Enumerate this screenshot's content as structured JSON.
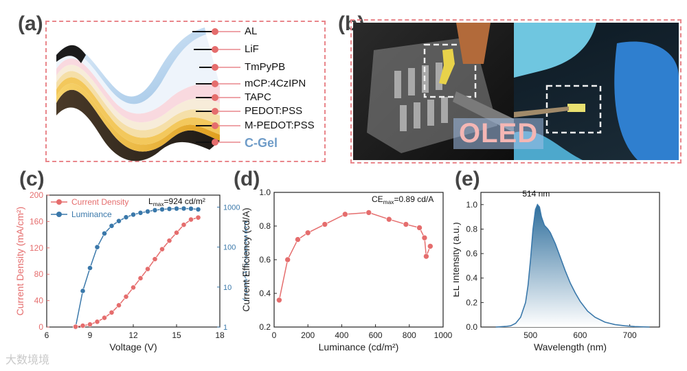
{
  "panels": {
    "a": "(a)",
    "b": "(b)",
    "c": "(c)",
    "d": "(d)",
    "e": "(e)"
  },
  "layers": [
    "AL",
    "LiF",
    "TmPyPB",
    "mCP:4CzIPN",
    "TAPC",
    "PEDOT:PSS",
    "M-PEDOT:PSS",
    "C-Gel"
  ],
  "photo_text": "OLED",
  "watermark": "大数境境",
  "colors": {
    "accent_red": "#e56d6d",
    "accent_blue": "#3a78aa",
    "dash": "#e9868b"
  },
  "chart_data": [
    {
      "type": "line",
      "id": "c",
      "xlabel": "Voltage (V)",
      "ylabel": "Current Density (mA/cm²)",
      "y2label": "Luminance (cd/m²)",
      "xlim": [
        6,
        18
      ],
      "ylim": [
        0,
        200
      ],
      "y2lim_log": [
        1,
        2000
      ],
      "xticks": [
        "6",
        "9",
        "12",
        "15",
        "18"
      ],
      "yticks": [
        "0",
        "40",
        "80",
        "120",
        "160",
        "200"
      ],
      "y2ticks": [
        "1",
        "10",
        "100",
        "1000"
      ],
      "annotation": {
        "main": "L",
        "sub": "max",
        "tail": "=924 cd/m²"
      },
      "series": [
        {
          "name": "Current Density",
          "axis": "left",
          "x": [
            8.0,
            8.5,
            9.0,
            9.5,
            10.0,
            10.5,
            11.0,
            11.5,
            12.0,
            12.5,
            13.0,
            13.5,
            14.0,
            14.5,
            15.0,
            15.5,
            16.0,
            16.5
          ],
          "y": [
            0.5,
            2,
            4,
            8,
            14,
            22,
            33,
            46,
            60,
            74,
            88,
            103,
            118,
            131,
            143,
            155,
            163,
            166
          ]
        },
        {
          "name": "Luminance",
          "axis": "right",
          "x": [
            8.0,
            8.5,
            9.0,
            9.5,
            10.0,
            10.5,
            11.0,
            11.5,
            12.0,
            12.5,
            13.0,
            13.5,
            14.0,
            14.5,
            15.0,
            15.5,
            16.0,
            16.5
          ],
          "y": [
            1,
            8,
            30,
            100,
            220,
            340,
            450,
            560,
            650,
            720,
            780,
            840,
            880,
            905,
            920,
            924,
            915,
            880
          ]
        }
      ]
    },
    {
      "type": "line",
      "id": "d",
      "xlabel": "Luminance (cd/m²)",
      "ylabel": "Current Efficiency (cd/A)",
      "xlim": [
        0,
        1000
      ],
      "ylim": [
        0.2,
        1.0
      ],
      "xticks": [
        "0",
        "200",
        "400",
        "600",
        "800",
        "1000"
      ],
      "yticks": [
        "0.2",
        "0.4",
        "0.6",
        "0.8",
        "1.0"
      ],
      "annotation": {
        "main": "CE",
        "sub": "max",
        "tail": "=0.89 cd/A"
      },
      "series": [
        {
          "name": "Current Efficiency",
          "x": [
            30,
            80,
            140,
            200,
            300,
            420,
            560,
            680,
            780,
            860,
            890,
            900,
            924
          ],
          "y": [
            0.36,
            0.6,
            0.72,
            0.76,
            0.81,
            0.87,
            0.88,
            0.84,
            0.81,
            0.79,
            0.73,
            0.62,
            0.68
          ]
        }
      ]
    },
    {
      "type": "area",
      "id": "e",
      "xlabel": "Wavelength (nm)",
      "ylabel": "EL Intensity (a.u.)",
      "xlim": [
        400,
        760
      ],
      "ylim": [
        0,
        1.1
      ],
      "xticks": [
        "500",
        "600",
        "700"
      ],
      "yticks": [
        "0.0",
        "0.2",
        "0.4",
        "0.6",
        "0.8",
        "1.0"
      ],
      "peak_label": "514 nm",
      "series": [
        {
          "name": "EL spectrum",
          "x": [
            430,
            450,
            460,
            470,
            480,
            490,
            495,
            500,
            505,
            510,
            514,
            518,
            522,
            528,
            535,
            540,
            550,
            560,
            570,
            580,
            590,
            600,
            615,
            630,
            650,
            670,
            690,
            710,
            740
          ],
          "y": [
            0,
            0.005,
            0.01,
            0.03,
            0.08,
            0.2,
            0.34,
            0.55,
            0.8,
            0.96,
            1.0,
            0.98,
            0.9,
            0.83,
            0.8,
            0.77,
            0.68,
            0.57,
            0.46,
            0.36,
            0.28,
            0.21,
            0.13,
            0.08,
            0.04,
            0.02,
            0.01,
            0.004,
            0
          ]
        }
      ]
    }
  ]
}
